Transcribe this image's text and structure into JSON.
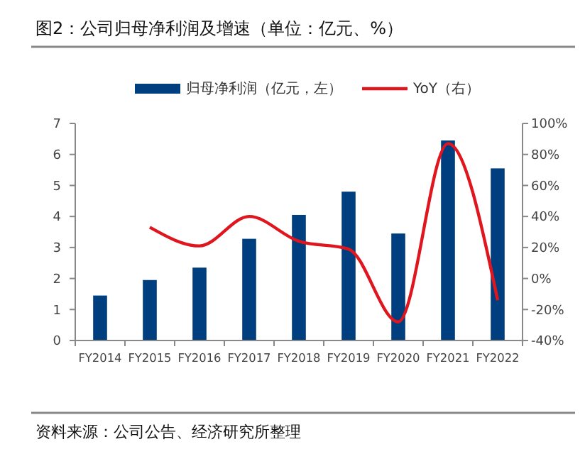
{
  "chart_data": {
    "type": "bar",
    "title": "图2：公司归母净利润及增速（单位：亿元、%）",
    "categories": [
      "FY2014",
      "FY2015",
      "FY2016",
      "FY2017",
      "FY2018",
      "FY2019",
      "FY2020",
      "FY2021",
      "FY2022"
    ],
    "series": [
      {
        "name": "归母净利润（亿元，左）",
        "color": "#003f7f",
        "values": [
          1.45,
          1.95,
          2.35,
          3.28,
          4.05,
          4.8,
          3.45,
          6.45,
          5.55
        ]
      },
      {
        "name": "YoY（右）",
        "type": "line",
        "axis": "y2",
        "color": "#e0161e",
        "values": [
          null,
          33,
          21,
          40,
          24,
          19,
          -28,
          87,
          -14
        ]
      }
    ],
    "ylim": [
      0,
      7
    ],
    "yticks": [
      0,
      1,
      2,
      3,
      4,
      5,
      6,
      7
    ],
    "y2lim": [
      -40,
      100
    ],
    "y2ticks": [
      {
        "value": -40,
        "label": "-40%"
      },
      {
        "value": -20,
        "label": "-20%"
      },
      {
        "value": 0,
        "label": "0%"
      },
      {
        "value": 20,
        "label": "20%"
      },
      {
        "value": 40,
        "label": "40%"
      },
      {
        "value": 60,
        "label": "60%"
      },
      {
        "value": 80,
        "label": "80%"
      },
      {
        "value": 100,
        "label": "100%"
      }
    ],
    "legend": "top",
    "grid": false,
    "marker": "none",
    "line_style": "solid",
    "annotations": [
      "资料来源：公司公告、经济研究所整理"
    ]
  }
}
